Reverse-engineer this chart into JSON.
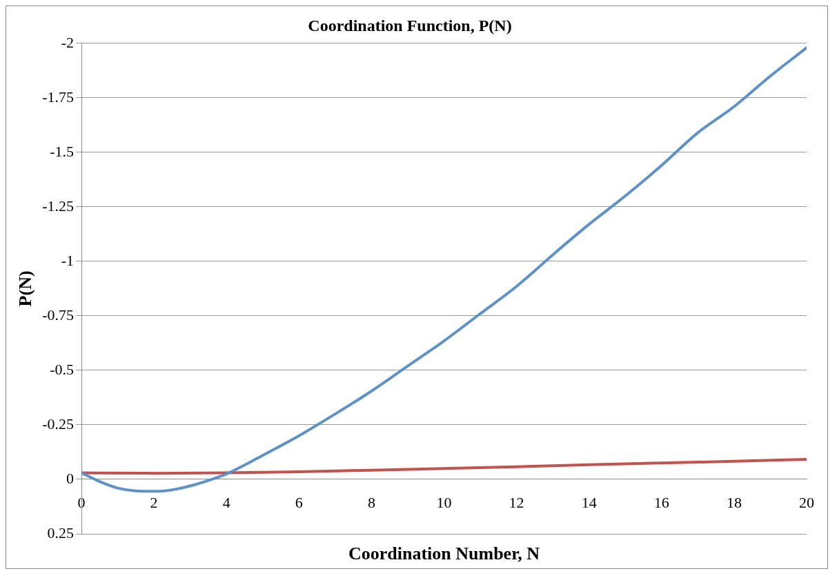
{
  "chart_data": {
    "type": "line",
    "title": "Coordination Function, P(N)",
    "xlabel": "Coordination Number, N",
    "ylabel": "P(N)",
    "xlim": [
      0,
      20
    ],
    "xticks": [
      0,
      2,
      4,
      6,
      8,
      10,
      12,
      14,
      16,
      18,
      20
    ],
    "ylim": [
      0.25,
      -2
    ],
    "yticks": [
      0.25,
      0,
      -0.25,
      -0.5,
      -0.75,
      -1,
      -1.25,
      -1.5,
      -1.75,
      -2
    ],
    "grid": "y",
    "legend": false,
    "marker": "none",
    "line_style": "solid",
    "series": [
      {
        "color": "#5b92cc",
        "x": [
          0,
          0.5,
          1,
          1.5,
          2,
          2.5,
          3,
          3.5,
          4,
          5,
          6,
          7,
          8,
          9,
          10,
          11,
          12,
          13,
          14,
          15,
          16,
          17,
          18,
          19,
          20
        ],
        "values": [
          -0.03,
          0.01,
          0.04,
          0.053,
          0.055,
          0.048,
          0.03,
          0.005,
          -0.025,
          -0.11,
          -0.2,
          -0.3,
          -0.405,
          -0.52,
          -0.635,
          -0.76,
          -0.885,
          -1.03,
          -1.17,
          -1.3,
          -1.44,
          -1.59,
          -1.71,
          -1.85,
          -1.98
        ]
      },
      {
        "color": "#c9504a",
        "x": [
          0,
          2,
          4,
          6,
          8,
          10,
          12,
          14,
          16,
          18,
          20
        ],
        "values": [
          -0.03,
          -0.028,
          -0.03,
          -0.035,
          -0.042,
          -0.05,
          -0.058,
          -0.067,
          -0.075,
          -0.083,
          -0.092
        ]
      }
    ]
  }
}
